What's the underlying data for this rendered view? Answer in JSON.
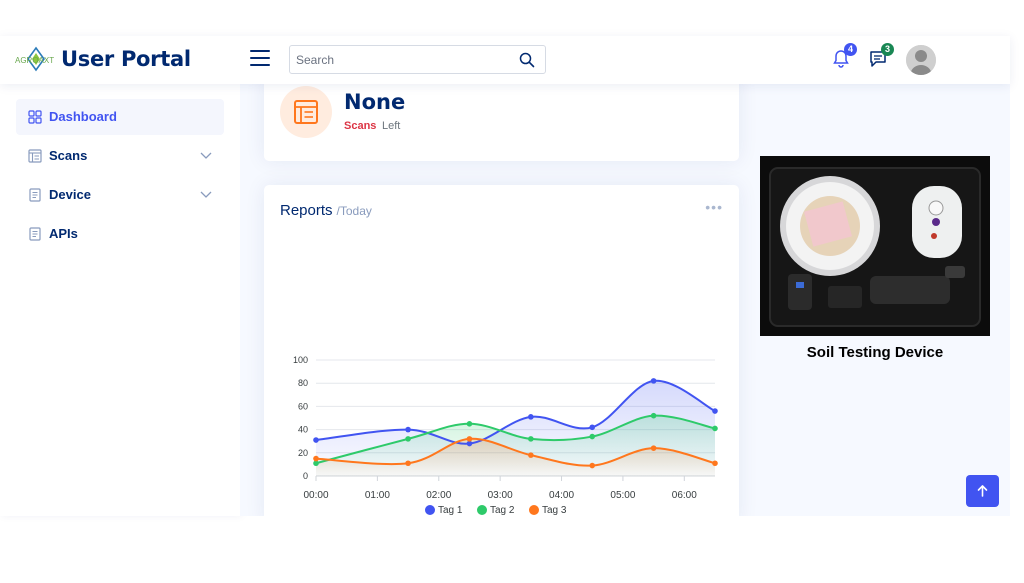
{
  "header": {
    "logo_text": "AGROAXT",
    "title": "User Portal",
    "search_placeholder": "Search",
    "notifications_count": "4",
    "messages_count": "3"
  },
  "sidebar": {
    "items": [
      {
        "label": "Dashboard",
        "icon": "grid-icon",
        "active": true
      },
      {
        "label": "Scans",
        "icon": "layout-text-icon",
        "expandable": true
      },
      {
        "label": "Device",
        "icon": "journal-text-icon",
        "expandable": true
      },
      {
        "label": "APIs",
        "icon": "journal-text-icon"
      }
    ]
  },
  "summary_card": {
    "value": "None",
    "label_highlight": "Scans",
    "label_rest": "Left",
    "icon": "layout-text-icon"
  },
  "reports": {
    "title": "Reports",
    "subtitle": "/Today",
    "menu": "..."
  },
  "device": {
    "caption": "Soil Testing Device"
  },
  "colors": {
    "primary": "#4154f1",
    "navy": "#012970",
    "tag1": "#4154f1",
    "tag2": "#2eca6a",
    "tag3": "#ff771d",
    "danger": "#dc3545"
  },
  "chart_data": {
    "type": "area",
    "categories": [
      "00:00",
      "01:00",
      "02:00",
      "03:00",
      "04:00",
      "05:00",
      "06:00"
    ],
    "x": [
      0,
      1.5,
      2.5,
      3.5,
      4.5,
      5.5,
      6.5
    ],
    "ylim": [
      0,
      100
    ],
    "yticks": [
      0,
      20,
      40,
      60,
      80,
      100
    ],
    "grid": true,
    "legend": "bottom",
    "series": [
      {
        "name": "Tag 1",
        "color": "#4154f1",
        "values": [
          31,
          40,
          28,
          51,
          42,
          82,
          56
        ]
      },
      {
        "name": "Tag 2",
        "color": "#2eca6a",
        "values": [
          11,
          32,
          45,
          32,
          34,
          52,
          41
        ]
      },
      {
        "name": "Tag 3",
        "color": "#ff771d",
        "values": [
          15,
          11,
          32,
          18,
          9,
          24,
          11
        ]
      }
    ]
  }
}
